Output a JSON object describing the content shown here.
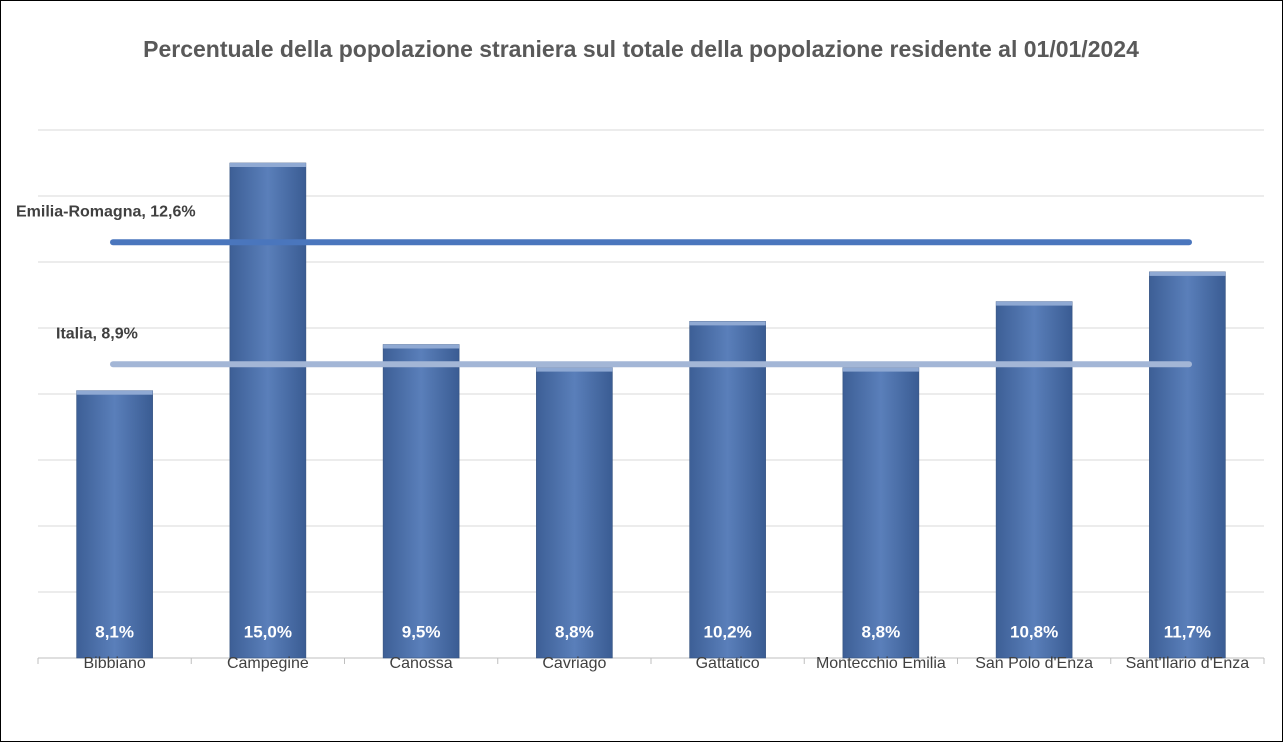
{
  "chart_data": {
    "type": "bar",
    "title": "Percentuale della popolazione straniera sul totale della popolazione residente al 01/01/2024",
    "categories": [
      "Bibbiano",
      "Campegine",
      "Canossa",
      "Cavriago",
      "Gattatico",
      "Montecchio Emilia",
      "San Polo d'Enza",
      "Sant'Ilario d'Enza"
    ],
    "values": [
      8.1,
      15.0,
      9.5,
      8.8,
      10.2,
      8.8,
      10.8,
      11.7
    ],
    "value_labels": [
      "8,1%",
      "15,0%",
      "9,5%",
      "8,8%",
      "10,2%",
      "8,8%",
      "10,8%",
      "11,7%"
    ],
    "color": "#4a6fa8",
    "ylim": [
      0,
      16
    ],
    "yticks": [
      0,
      2,
      4,
      6,
      8,
      10,
      12,
      14,
      16
    ],
    "grid": true,
    "reference_lines": [
      {
        "label": "Emilia-Romagna, 12,6%",
        "value": 12.6,
        "color": "#4a76bd"
      },
      {
        "label": "Italia, 8,9%",
        "value": 8.9,
        "color": "#a3b6d6"
      }
    ]
  }
}
